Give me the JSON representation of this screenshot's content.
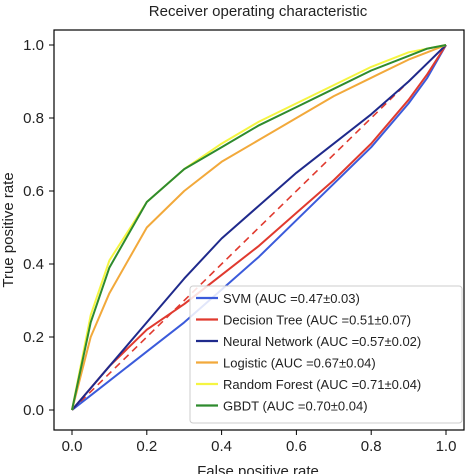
{
  "chart_data": {
    "type": "line",
    "title": "Receiver operating characteristic",
    "xlabel": "False positive rate",
    "ylabel": "True positive rate",
    "xlim": [
      0,
      1
    ],
    "ylim": [
      0,
      1
    ],
    "xticks": [
      "0.0",
      "0.2",
      "0.4",
      "0.6",
      "0.8",
      "1.0"
    ],
    "yticks": [
      "0.0",
      "0.2",
      "0.4",
      "0.6",
      "0.8",
      "1.0"
    ],
    "grid": false,
    "legend_position": "lower-right",
    "reference_line": {
      "style": "dashed",
      "color": "#e03a2f",
      "x": [
        0,
        1
      ],
      "y": [
        0,
        1
      ]
    },
    "series": [
      {
        "name": "SVM (AUC =0.47±0.03)",
        "color": "#3b5bdb",
        "x": [
          0,
          0.05,
          0.1,
          0.2,
          0.3,
          0.4,
          0.5,
          0.6,
          0.7,
          0.8,
          0.9,
          0.95,
          1.0
        ],
        "y": [
          0,
          0.04,
          0.08,
          0.16,
          0.24,
          0.33,
          0.42,
          0.52,
          0.62,
          0.72,
          0.84,
          0.91,
          1.0
        ]
      },
      {
        "name": "Decision Tree (AUC =0.51±0.07)",
        "color": "#e03a2f",
        "x": [
          0,
          0.05,
          0.1,
          0.2,
          0.3,
          0.4,
          0.5,
          0.6,
          0.7,
          0.8,
          0.9,
          0.95,
          1.0
        ],
        "y": [
          0,
          0.06,
          0.12,
          0.22,
          0.29,
          0.37,
          0.45,
          0.54,
          0.63,
          0.73,
          0.85,
          0.92,
          1.0
        ]
      },
      {
        "name": "Neural Network (AUC =0.57±0.02)",
        "color": "#1f2a8c",
        "x": [
          0,
          0.05,
          0.1,
          0.2,
          0.3,
          0.4,
          0.5,
          0.6,
          0.7,
          0.8,
          0.9,
          0.95,
          1.0
        ],
        "y": [
          0,
          0.06,
          0.12,
          0.24,
          0.36,
          0.47,
          0.56,
          0.65,
          0.73,
          0.81,
          0.9,
          0.95,
          1.0
        ]
      },
      {
        "name": "Logistic (AUC =0.67±0.04)",
        "color": "#f2a93b",
        "x": [
          0,
          0.05,
          0.1,
          0.2,
          0.3,
          0.4,
          0.5,
          0.6,
          0.7,
          0.8,
          0.9,
          0.95,
          1.0
        ],
        "y": [
          0,
          0.2,
          0.32,
          0.5,
          0.6,
          0.68,
          0.74,
          0.8,
          0.86,
          0.91,
          0.96,
          0.98,
          1.0
        ]
      },
      {
        "name": "Random Forest (AUC =0.71±0.04)",
        "color": "#f5f542",
        "x": [
          0,
          0.05,
          0.1,
          0.2,
          0.3,
          0.4,
          0.5,
          0.6,
          0.7,
          0.8,
          0.9,
          0.95,
          1.0
        ],
        "y": [
          0,
          0.26,
          0.41,
          0.57,
          0.66,
          0.73,
          0.79,
          0.84,
          0.89,
          0.94,
          0.98,
          0.99,
          1.0
        ]
      },
      {
        "name": "GBDT (AUC =0.70±0.04)",
        "color": "#2e8b2e",
        "x": [
          0,
          0.05,
          0.1,
          0.2,
          0.3,
          0.4,
          0.5,
          0.6,
          0.7,
          0.8,
          0.9,
          0.95,
          1.0
        ],
        "y": [
          0,
          0.24,
          0.39,
          0.57,
          0.66,
          0.72,
          0.78,
          0.83,
          0.88,
          0.93,
          0.97,
          0.99,
          1.0
        ]
      }
    ]
  }
}
